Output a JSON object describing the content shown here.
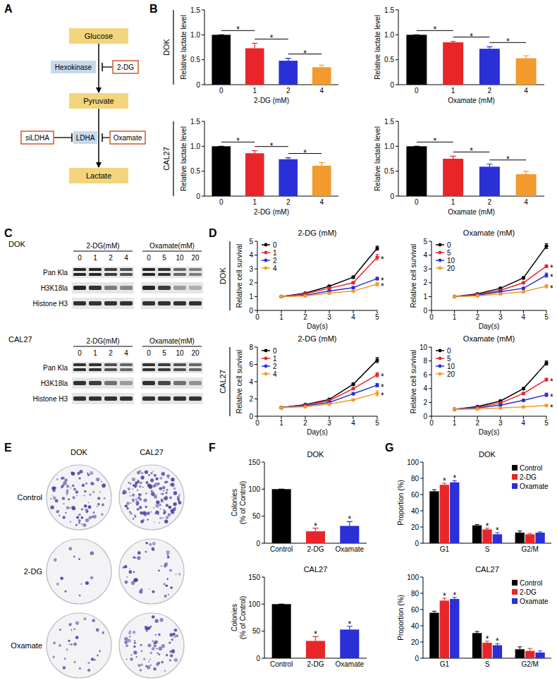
{
  "panel_letters": [
    "A",
    "B",
    "C",
    "D",
    "E",
    "F",
    "G"
  ],
  "diagram": {
    "metabolites": [
      "Glucose",
      "Pyruvate",
      "Lactate"
    ],
    "enzymes": [
      "Hexokinase",
      "LDHA"
    ],
    "inhibitors": [
      "2-DG",
      "siLDHA",
      "Oxamate"
    ]
  },
  "lactate_rows": [
    "DOK",
    "CAL27"
  ],
  "survival_rows": [
    "DOK",
    "CAL27"
  ],
  "blots": {
    "cell_lines": [
      "DOK",
      "CAL27"
    ],
    "treatments": [
      {
        "title": "2-DG(mM)",
        "lanes": [
          "0",
          "1",
          "2",
          "4"
        ]
      },
      {
        "title": "Oxamate(mM)",
        "lanes": [
          "0",
          "5",
          "10",
          "20"
        ]
      }
    ],
    "rows": [
      "Pan Kla",
      "H3K18la",
      "Histone H3"
    ],
    "intensity": [
      [
        [
          0.9,
          0.9,
          0.8,
          0.7,
          0.9,
          0.85,
          0.6,
          0.5
        ],
        [
          0.9,
          0.85,
          0.5,
          0.45,
          0.9,
          0.8,
          0.35,
          0.25
        ],
        [
          0.85,
          0.85,
          0.85,
          0.85,
          0.85,
          0.85,
          0.85,
          0.85
        ]
      ],
      [
        [
          0.85,
          0.85,
          0.7,
          0.6,
          0.85,
          0.8,
          0.7,
          0.6
        ],
        [
          0.85,
          0.8,
          0.55,
          0.35,
          0.85,
          0.75,
          0.55,
          0.4
        ],
        [
          0.85,
          0.85,
          0.85,
          0.85,
          0.85,
          0.85,
          0.85,
          0.85
        ]
      ]
    ]
  },
  "colonies": {
    "cell_lines": [
      "DOK",
      "CAL27"
    ],
    "treatments": [
      "Control",
      "2-DG",
      "Oxamate"
    ],
    "counts": [
      [
        90,
        12,
        30
      ],
      [
        140,
        40,
        70
      ]
    ]
  },
  "chart_data": [
    {
      "type": "bar",
      "x_label": "2-DG (mM)",
      "y_label": "Relative lactate level",
      "categories": [
        "0",
        "1",
        "2",
        "4"
      ],
      "values": [
        1.0,
        0.73,
        0.48,
        0.35
      ],
      "errors": [
        0,
        0.1,
        0.05,
        0.04
      ],
      "colors": [
        "#000000",
        "#e8262a",
        "#2a2fd6",
        "#f39a2c"
      ],
      "ylim": [
        0,
        1.5
      ],
      "yticks": [
        0,
        0.5,
        {
          "value": 1,
          "label": "1.0"
        },
        1.5
      ],
      "comparisons": [
        {
          "pair": [
            0,
            1
          ],
          "label": "*"
        },
        {
          "pair": [
            1,
            2
          ],
          "label": "*"
        },
        {
          "pair": [
            2,
            3
          ],
          "label": "*"
        }
      ]
    },
    {
      "type": "bar",
      "x_label": "Oxamate (mM)",
      "y_label": "Relative lactate level",
      "categories": [
        "0",
        "1",
        "2",
        "4"
      ],
      "values": [
        1.0,
        0.85,
        0.72,
        0.53
      ],
      "errors": [
        0,
        0.02,
        0.04,
        0.05
      ],
      "colors": [
        "#000000",
        "#e8262a",
        "#2a2fd6",
        "#f39a2c"
      ],
      "ylim": [
        0,
        1.5
      ],
      "yticks": [
        0,
        0.5,
        {
          "value": 1,
          "label": "1.0"
        },
        1.5
      ],
      "comparisons": [
        {
          "pair": [
            0,
            1
          ],
          "label": "*"
        },
        {
          "pair": [
            1,
            2
          ],
          "label": "*"
        },
        {
          "pair": [
            2,
            3
          ],
          "label": "*"
        }
      ]
    },
    {
      "type": "bar",
      "x_label": "2-DG (mM)",
      "y_label": "Relative lactate level",
      "categories": [
        "0",
        "1",
        "2",
        "4"
      ],
      "values": [
        1.0,
        0.86,
        0.74,
        0.61
      ],
      "errors": [
        0,
        0.05,
        0.03,
        0.06
      ],
      "colors": [
        "#000000",
        "#e8262a",
        "#2a2fd6",
        "#f39a2c"
      ],
      "ylim": [
        0,
        1.5
      ],
      "yticks": [
        0,
        0.5,
        {
          "value": 1,
          "label": "1.0"
        },
        1.5
      ],
      "comparisons": [
        {
          "pair": [
            0,
            1
          ],
          "label": "*"
        },
        {
          "pair": [
            1,
            2
          ],
          "label": "*"
        },
        {
          "pair": [
            2,
            3
          ],
          "label": "*"
        }
      ]
    },
    {
      "type": "bar",
      "x_label": "Oxamate (mM)",
      "y_label": "Relative lactate level",
      "categories": [
        "0",
        "1",
        "2",
        "4"
      ],
      "values": [
        1.0,
        0.75,
        0.59,
        0.44
      ],
      "errors": [
        0,
        0.05,
        0.05,
        0.06
      ],
      "colors": [
        "#000000",
        "#e8262a",
        "#2a2fd6",
        "#f39a2c"
      ],
      "ylim": [
        0,
        1.5
      ],
      "yticks": [
        0,
        0.5,
        {
          "value": 1,
          "label": "1.0"
        },
        1.5
      ],
      "comparisons": [
        {
          "pair": [
            0,
            1
          ],
          "label": "*"
        },
        {
          "pair": [
            1,
            2
          ],
          "label": "*"
        },
        {
          "pair": [
            2,
            3
          ],
          "label": "*"
        }
      ]
    },
    {
      "type": "line",
      "title": "2-DG (mM)",
      "x_label": "Day(s)",
      "y_label": "Relative cell survival",
      "x": [
        1,
        2,
        3,
        4,
        5
      ],
      "xlim": [
        0,
        5
      ],
      "xticks": [
        0,
        1,
        2,
        3,
        4,
        5
      ],
      "ylim": [
        0,
        5
      ],
      "yticks": [
        0,
        1,
        2,
        3,
        4,
        5
      ],
      "legend": "upper left",
      "marker": "circle",
      "series": [
        {
          "name": "0",
          "color": "#000000",
          "values": [
            1,
            1.25,
            1.75,
            2.4,
            4.5
          ],
          "errors": [
            0.02,
            0.04,
            0.06,
            0.08,
            0.15
          ]
        },
        {
          "name": "1",
          "color": "#e8262a",
          "values": [
            1,
            1.2,
            1.6,
            2.0,
            3.85
          ],
          "errors": [
            0.02,
            0.04,
            0.05,
            0.08,
            0.2
          ]
        },
        {
          "name": "2",
          "color": "#2a2fd6",
          "values": [
            1,
            1.1,
            1.4,
            1.65,
            2.3
          ],
          "errors": [
            0.02,
            0.03,
            0.05,
            0.06,
            0.1
          ]
        },
        {
          "name": "4",
          "color": "#f39a2c",
          "values": [
            1,
            1.05,
            1.25,
            1.4,
            1.9
          ],
          "errors": [
            0.02,
            0.03,
            0.04,
            0.05,
            0.12
          ]
        }
      ],
      "annotations": [
        {
          "series": 1,
          "text": "*"
        },
        {
          "series": 2,
          "text": "*"
        },
        {
          "series": 3,
          "text": "*"
        }
      ]
    },
    {
      "type": "line",
      "title": "Oxamate (mM)",
      "x_label": "Day(s)",
      "y_label": "Relative cell survival",
      "x": [
        1,
        2,
        3,
        4,
        5
      ],
      "xlim": [
        0,
        5
      ],
      "xticks": [
        0,
        1,
        2,
        3,
        4,
        5
      ],
      "ylim": [
        0,
        5
      ],
      "yticks": [
        0,
        1,
        2,
        3,
        4,
        5
      ],
      "legend": "upper left",
      "marker": "circle",
      "series": [
        {
          "name": "0",
          "color": "#000000",
          "values": [
            1,
            1.2,
            1.6,
            2.35,
            4.65
          ],
          "errors": [
            0.02,
            0.04,
            0.06,
            0.08,
            0.18
          ]
        },
        {
          "name": "5",
          "color": "#e8262a",
          "values": [
            1,
            1.15,
            1.45,
            2.0,
            3.2
          ],
          "errors": [
            0.02,
            0.03,
            0.05,
            0.07,
            0.1
          ]
        },
        {
          "name": "10",
          "color": "#2a2fd6",
          "values": [
            1,
            1.1,
            1.35,
            1.6,
            2.55
          ],
          "errors": [
            0.02,
            0.03,
            0.05,
            0.06,
            0.15
          ]
        },
        {
          "name": "20",
          "color": "#f39a2c",
          "values": [
            1,
            1.05,
            1.2,
            1.35,
            1.75
          ],
          "errors": [
            0.02,
            0.03,
            0.04,
            0.05,
            0.12
          ]
        }
      ],
      "annotations": [
        {
          "series": 1,
          "text": "*"
        },
        {
          "series": 2,
          "text": "*"
        },
        {
          "series": 3,
          "text": "*"
        }
      ]
    },
    {
      "type": "line",
      "title": "2-DG (mM)",
      "x_label": "Day(s)",
      "y_label": "Relative cell survival",
      "x": [
        1,
        2,
        3,
        4,
        5
      ],
      "xlim": [
        0,
        5
      ],
      "xticks": [
        0,
        1,
        2,
        3,
        4,
        5
      ],
      "ylim": [
        0,
        8
      ],
      "yticks": [
        0,
        2,
        4,
        6,
        8
      ],
      "legend": "upper left",
      "marker": "circle",
      "series": [
        {
          "name": "0",
          "color": "#000000",
          "values": [
            1,
            1.35,
            1.95,
            3.7,
            6.5
          ],
          "errors": [
            0.03,
            0.05,
            0.08,
            0.15,
            0.3
          ]
        },
        {
          "name": "1",
          "color": "#e8262a",
          "values": [
            1,
            1.3,
            1.8,
            3.2,
            4.8
          ],
          "errors": [
            0.03,
            0.05,
            0.08,
            0.12,
            0.25
          ]
        },
        {
          "name": "2",
          "color": "#2a2fd6",
          "values": [
            1,
            1.2,
            1.6,
            2.6,
            3.6
          ],
          "errors": [
            0.03,
            0.05,
            0.07,
            0.1,
            0.2
          ]
        },
        {
          "name": "4",
          "color": "#f39a2c",
          "values": [
            1,
            1.1,
            1.4,
            1.9,
            2.65
          ],
          "errors": [
            0.03,
            0.04,
            0.06,
            0.1,
            0.3
          ]
        }
      ],
      "annotations": [
        {
          "series": 1,
          "text": "*"
        },
        {
          "series": 2,
          "text": "*"
        },
        {
          "series": 3,
          "text": "*"
        }
      ]
    },
    {
      "type": "line",
      "title": "Oxamate (mM)",
      "x_label": "Day(s)",
      "y_label": "Relative cell survival",
      "x": [
        1,
        2,
        3,
        4,
        5
      ],
      "xlim": [
        0,
        5
      ],
      "xticks": [
        0,
        1,
        2,
        3,
        4,
        5
      ],
      "ylim": [
        0,
        10
      ],
      "yticks": [
        0,
        2,
        4,
        6,
        8,
        10
      ],
      "legend": "upper left",
      "marker": "circle",
      "series": [
        {
          "name": "0",
          "color": "#000000",
          "values": [
            1,
            1.4,
            2.2,
            4.0,
            7.7
          ],
          "errors": [
            0.03,
            0.05,
            0.08,
            0.15,
            0.3
          ]
        },
        {
          "name": "5",
          "color": "#e8262a",
          "values": [
            1,
            1.3,
            1.9,
            3.3,
            5.3
          ],
          "errors": [
            0.03,
            0.05,
            0.07,
            0.12,
            0.2
          ]
        },
        {
          "name": "10",
          "color": "#2a2fd6",
          "values": [
            1,
            1.2,
            1.6,
            2.3,
            3.1
          ],
          "errors": [
            0.03,
            0.04,
            0.06,
            0.1,
            0.25
          ]
        },
        {
          "name": "20",
          "color": "#f39a2c",
          "values": [
            1,
            1.05,
            1.2,
            1.35,
            1.55
          ],
          "errors": [
            0.03,
            0.04,
            0.05,
            0.06,
            0.15
          ]
        }
      ],
      "annotations": [
        {
          "series": 1,
          "text": "*"
        },
        {
          "series": 2,
          "text": "*"
        },
        {
          "series": 3,
          "text": "*"
        }
      ]
    },
    {
      "type": "bar",
      "title": "DOK",
      "y_label": [
        "Colonies",
        "(% of Control)"
      ],
      "categories": [
        "Control",
        "2-DG",
        "Oxamate"
      ],
      "values": [
        100,
        22,
        32
      ],
      "errors": [
        0,
        6,
        8
      ],
      "colors": [
        "#000000",
        "#e8262a",
        "#2a2fd6"
      ],
      "ylim": [
        0,
        150
      ],
      "yticks": [
        0,
        50,
        100,
        150
      ],
      "annotations": [
        {
          "index": 1,
          "text": "*"
        },
        {
          "index": 2,
          "text": "*"
        }
      ]
    },
    {
      "type": "bar",
      "title": "CAL27",
      "y_label": [
        "Colonies",
        "(% of Control)"
      ],
      "categories": [
        "Control",
        "2-DG",
        "Oxamate"
      ],
      "values": [
        100,
        32,
        53
      ],
      "errors": [
        0,
        8,
        6
      ],
      "colors": [
        "#000000",
        "#e8262a",
        "#2a2fd6"
      ],
      "ylim": [
        0,
        150
      ],
      "yticks": [
        0,
        50,
        100,
        150
      ],
      "annotations": [
        {
          "index": 1,
          "text": "*"
        },
        {
          "index": 2,
          "text": "*"
        }
      ]
    },
    {
      "type": "grouped_bar",
      "title": "DOK",
      "y_label": "Proportion (%)",
      "categories": [
        "G1",
        "S",
        "G2/M"
      ],
      "ylim": [
        0,
        100
      ],
      "yticks": [
        0,
        20,
        40,
        60,
        80,
        100
      ],
      "legend": "upper right",
      "series": [
        {
          "name": "Control",
          "color": "#000000",
          "values": [
            64,
            22,
            13
          ],
          "errors": [
            2,
            1,
            2
          ]
        },
        {
          "name": "2-DG",
          "color": "#e8262a",
          "values": [
            72,
            17,
            11
          ],
          "errors": [
            2,
            1.5,
            1
          ]
        },
        {
          "name": "Oxamate",
          "color": "#2a2fd6",
          "values": [
            75,
            11,
            13
          ],
          "errors": [
            2,
            2,
            1
          ]
        }
      ],
      "annotations": [
        {
          "series": 1,
          "index": 0,
          "text": "*"
        },
        {
          "series": 2,
          "index": 0,
          "text": "*"
        },
        {
          "series": 1,
          "index": 1,
          "text": "*"
        },
        {
          "series": 2,
          "index": 1,
          "text": "*"
        }
      ]
    },
    {
      "type": "grouped_bar",
      "title": "CAL27",
      "y_label": "Proportion (%)",
      "categories": [
        "G1",
        "S",
        "G2/M"
      ],
      "ylim": [
        0,
        100
      ],
      "yticks": [
        0,
        20,
        40,
        60,
        80,
        100
      ],
      "legend": "upper right",
      "series": [
        {
          "name": "Control",
          "color": "#000000",
          "values": [
            56,
            31,
            11
          ],
          "errors": [
            2,
            2,
            3
          ]
        },
        {
          "name": "2-DG",
          "color": "#e8262a",
          "values": [
            71,
            19,
            9
          ],
          "errors": [
            3,
            2,
            3
          ]
        },
        {
          "name": "Oxamate",
          "color": "#2a2fd6",
          "values": [
            73,
            16,
            7
          ],
          "errors": [
            2,
            2,
            2
          ]
        }
      ],
      "annotations": [
        {
          "series": 1,
          "index": 0,
          "text": "*"
        },
        {
          "series": 2,
          "index": 0,
          "text": "*"
        },
        {
          "series": 1,
          "index": 1,
          "text": "*"
        },
        {
          "series": 2,
          "index": 1,
          "text": "*"
        }
      ]
    }
  ]
}
